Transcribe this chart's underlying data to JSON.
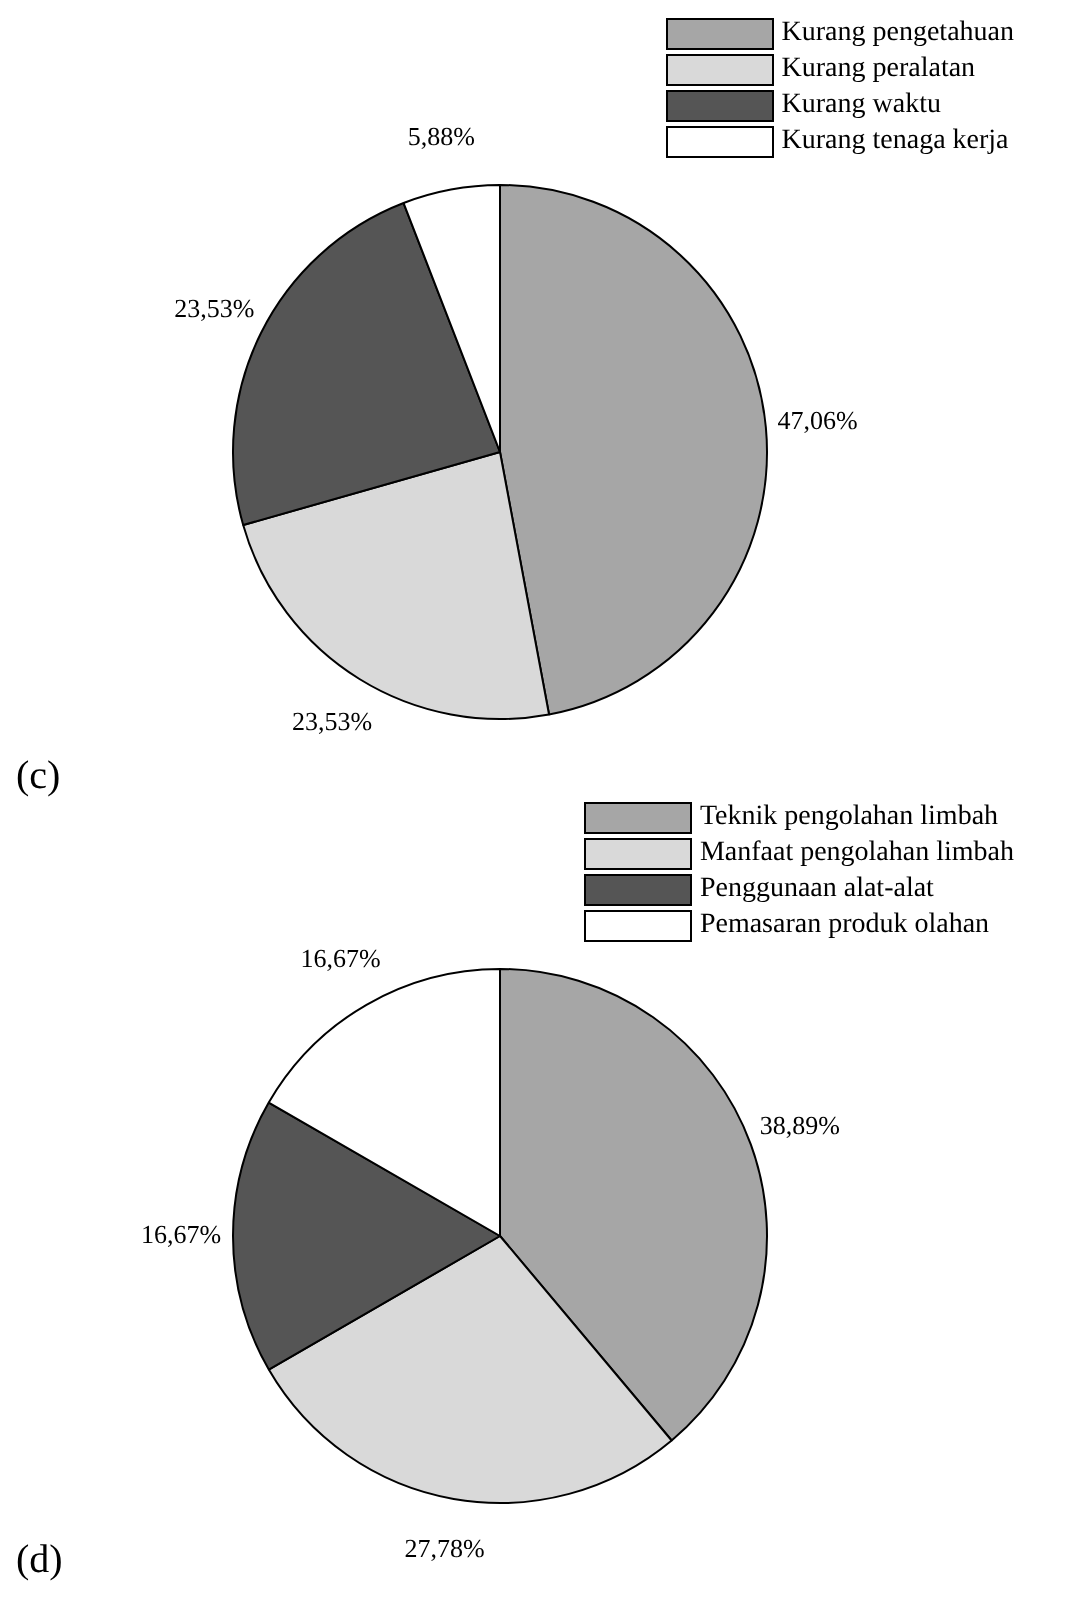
{
  "chart_data": [
    {
      "type": "pie",
      "title": "(c)",
      "categories": [
        "Kurang pengetahuan",
        "Kurang peralatan",
        "Kurang waktu",
        "Kurang tenaga kerja"
      ],
      "values": [
        47.06,
        23.53,
        23.53,
        5.88
      ],
      "value_labels": [
        "47,06%",
        "23,53%",
        "23,53%",
        "5,88%"
      ],
      "colors": [
        "#a6a6a6",
        "#d9d9d9",
        "#555555",
        "#ffffff"
      ],
      "legend": "top right"
    },
    {
      "type": "pie",
      "title": "(d)",
      "categories": [
        "Teknik pengolahan limbah",
        "Manfaat pengolahan limbah",
        "Penggunaan alat-alat",
        "Pemasaran produk olahan"
      ],
      "values": [
        38.89,
        27.78,
        16.67,
        16.67
      ],
      "value_labels": [
        "38,89%",
        "27,78%",
        "16,67%",
        "16,67%"
      ],
      "colors": [
        "#a6a6a6",
        "#d9d9d9",
        "#555555",
        "#ffffff"
      ],
      "legend": "top right"
    }
  ]
}
